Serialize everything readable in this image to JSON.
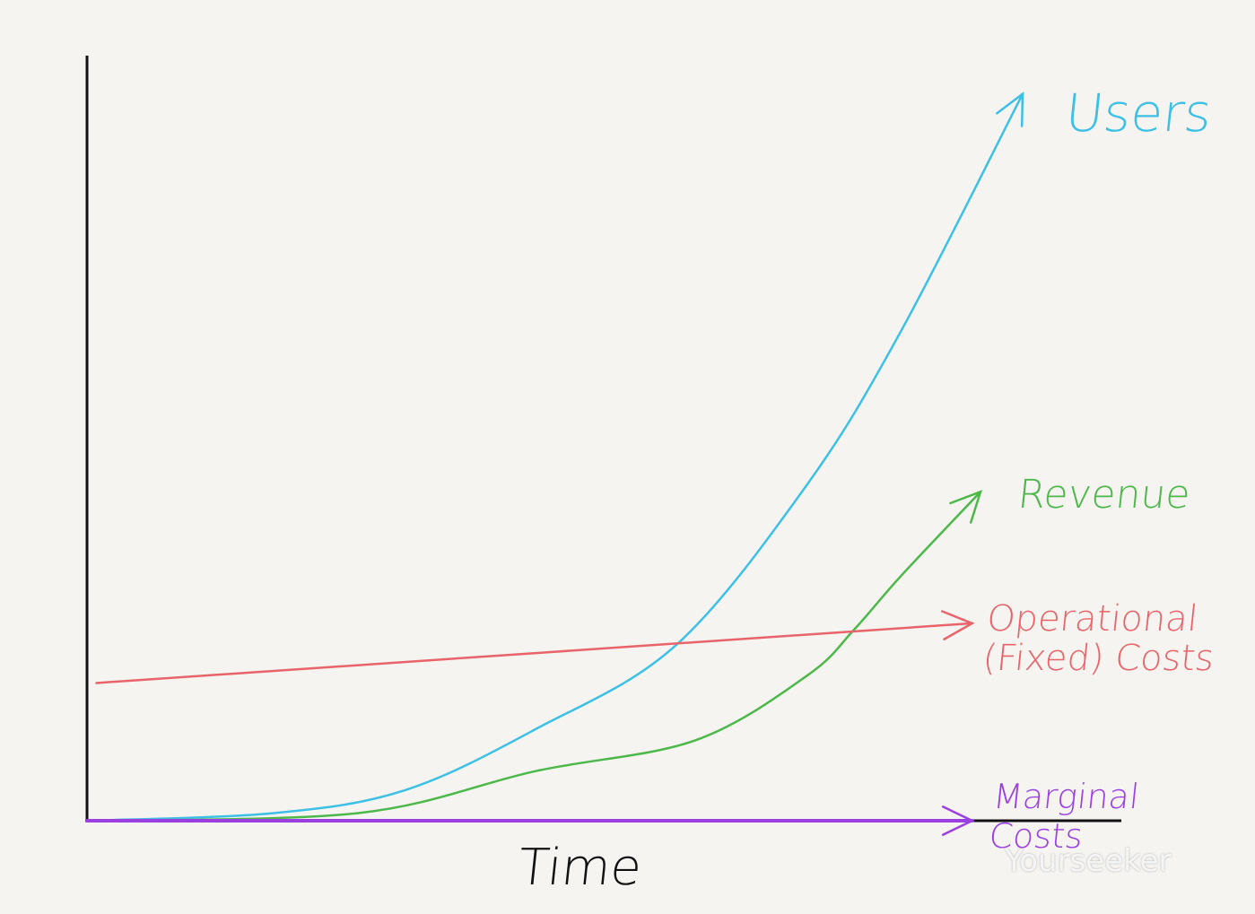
{
  "chart_data": {
    "type": "line",
    "title": "",
    "xlabel": "Time",
    "ylabel": "",
    "xlim": [
      0,
      110
    ],
    "ylim": [
      0,
      100
    ],
    "grid": false,
    "legend": "inline labels at line ends",
    "series": [
      {
        "name": "Users",
        "color": "#3cc0e6",
        "x": [
          0,
          20,
          34,
          48,
          63,
          77,
          87,
          100
        ],
        "y": [
          0,
          1,
          4,
          12,
          23,
          44,
          64,
          95
        ]
      },
      {
        "name": "Revenue",
        "color": "#4cb84a",
        "x": [
          0,
          29,
          48,
          65,
          77,
          82,
          87,
          95.5
        ],
        "y": [
          0,
          1,
          6.5,
          10.5,
          19,
          25,
          32,
          43
        ]
      },
      {
        "name": "Operational (Fixed) Costs",
        "color": "#e8646a",
        "x": [
          1,
          94.6
        ],
        "y": [
          18,
          25.8
        ]
      },
      {
        "name": "Marginal Costs",
        "color": "#9b3fe0",
        "x": [
          0,
          94.6
        ],
        "y": [
          0,
          0
        ]
      }
    ],
    "labels": {
      "users": "Users",
      "revenue": "Revenue",
      "operational_line1": "Operational",
      "operational_line2": "(Fixed) Costs",
      "marginal_line1": "Marginal",
      "marginal_line2": "Costs"
    }
  },
  "watermark": "Yourseeker"
}
